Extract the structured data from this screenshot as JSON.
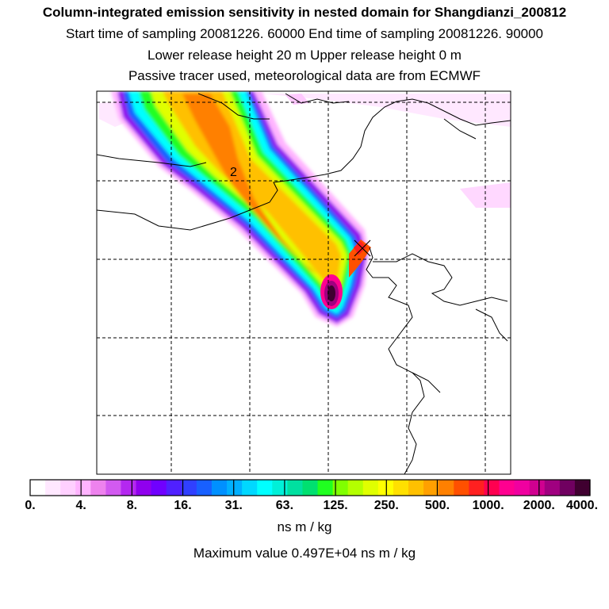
{
  "header": {
    "title": "Column-integrated emission sensitivity in nested domain for Shangdianzi_200812",
    "line2": "Start time of sampling 20081226. 60000     End time of sampling 20081226. 90000",
    "line3": "Lower release height   20 m          Upper release height    0 m",
    "line4": "Passive tracer used, meteorological data are from ECMWF"
  },
  "map": {
    "contour_label": "2",
    "receptor_marker": "x-cross-icon"
  },
  "colorbar": {
    "ticks": [
      "0.",
      "4.",
      "8.",
      "16.",
      "31.",
      "63.",
      "125.",
      "250.",
      "500.",
      "1000.",
      "2000.",
      "4000."
    ],
    "colors": [
      "#ffffff",
      "#ffe8ff",
      "#ffd0ff",
      "#ffb4ff",
      "#ee82ee",
      "#d25af0",
      "#b428f0",
      "#9000ee",
      "#7000ff",
      "#5020ff",
      "#3040ff",
      "#1860ff",
      "#0090ff",
      "#00b0ff",
      "#00d8ff",
      "#00ffff",
      "#00f0d8",
      "#00e0a0",
      "#00e070",
      "#20ff20",
      "#80ff00",
      "#b4ff00",
      "#e0ff00",
      "#ffff00",
      "#ffe000",
      "#ffc000",
      "#ffa000",
      "#ff8000",
      "#ff5000",
      "#ff2020",
      "#ff0050",
      "#ff0090",
      "#f000a0",
      "#d00090",
      "#a00080",
      "#700060",
      "#400030"
    ],
    "units": "ns m / kg"
  },
  "footer": {
    "max_value": "Maximum value  0.497E+04 ns m / kg"
  }
}
